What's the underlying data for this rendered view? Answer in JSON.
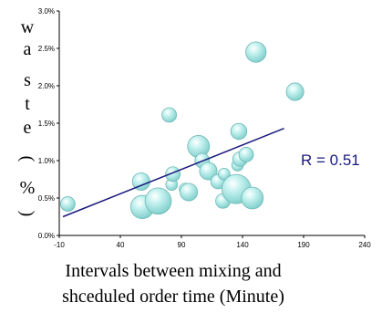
{
  "chart_data": {
    "type": "scatter",
    "bubble": true,
    "title": "",
    "xlabel_lines": [
      "Intervals between mixing and",
      "shceduled order time (Minute)"
    ],
    "ylabel_chars": [
      "w",
      "a",
      "s",
      "t",
      "e",
      "(",
      "%",
      ")"
    ],
    "xlim": [
      -10,
      240
    ],
    "ylim": [
      0.0,
      3.0
    ],
    "x_ticks": [
      "-10",
      "40",
      "90",
      "140",
      "190",
      "240"
    ],
    "y_ticks": [
      "0.0%",
      "0.5%",
      "1.0%",
      "1.5%",
      "2.0%",
      "2.5%",
      "3.0%"
    ],
    "grid": false,
    "points": [
      {
        "x": -3,
        "y": 0.42,
        "size": 1.0
      },
      {
        "x": 57,
        "y": 0.72,
        "size": 1.2
      },
      {
        "x": 58,
        "y": 0.38,
        "size": 1.6
      },
      {
        "x": 71,
        "y": 0.46,
        "size": 1.8
      },
      {
        "x": 80,
        "y": 1.61,
        "size": 1.0
      },
      {
        "x": 82,
        "y": 0.68,
        "size": 0.8
      },
      {
        "x": 83,
        "y": 0.82,
        "size": 1.0
      },
      {
        "x": 93,
        "y": 0.62,
        "size": 0.8
      },
      {
        "x": 96,
        "y": 0.58,
        "size": 1.2
      },
      {
        "x": 104,
        "y": 1.19,
        "size": 1.5
      },
      {
        "x": 107,
        "y": 1.0,
        "size": 1.0
      },
      {
        "x": 112,
        "y": 0.86,
        "size": 1.2
      },
      {
        "x": 120,
        "y": 0.72,
        "size": 1.0
      },
      {
        "x": 124,
        "y": 0.46,
        "size": 1.0
      },
      {
        "x": 125,
        "y": 0.82,
        "size": 0.8
      },
      {
        "x": 135,
        "y": 0.62,
        "size": 2.0
      },
      {
        "x": 136,
        "y": 0.94,
        "size": 0.8
      },
      {
        "x": 137,
        "y": 1.39,
        "size": 1.1
      },
      {
        "x": 138,
        "y": 1.02,
        "size": 1.0
      },
      {
        "x": 143,
        "y": 1.08,
        "size": 1.0
      },
      {
        "x": 148,
        "y": 0.5,
        "size": 1.5
      },
      {
        "x": 151,
        "y": 2.45,
        "size": 1.4
      },
      {
        "x": 183,
        "y": 1.92,
        "size": 1.2
      }
    ],
    "trendline": {
      "x1": -7,
      "y1": 0.25,
      "x2": 174,
      "y2": 1.43,
      "color": "#1a1a7e"
    },
    "annotation": "R = 0.51",
    "colors": {
      "bubble_fill": "#a8e8e6",
      "bubble_stroke": "#6fb8b6",
      "trend": "#1a1a7e"
    }
  }
}
